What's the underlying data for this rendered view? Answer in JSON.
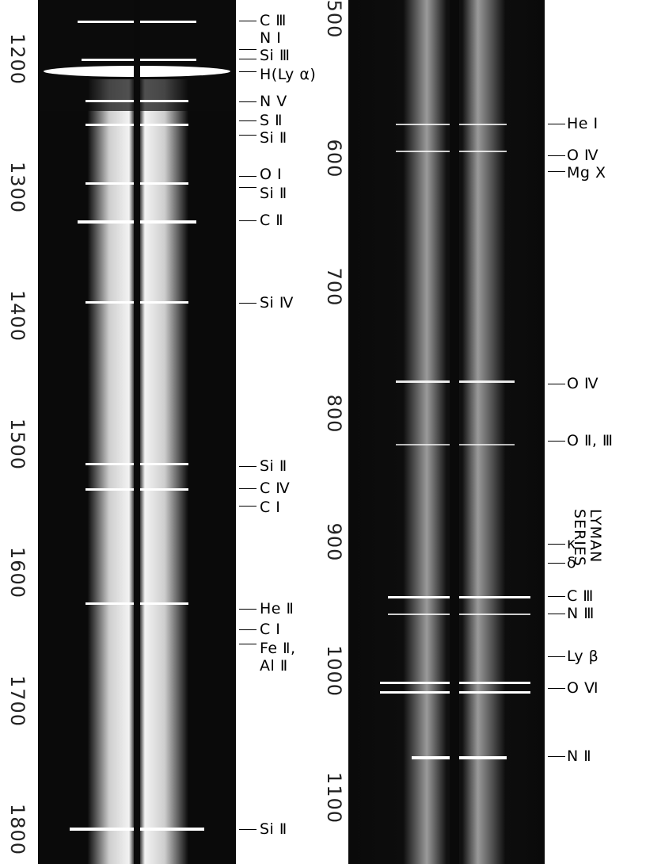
{
  "left_scale": {
    "ticks": [
      "1200",
      "1300",
      "1400",
      "1500",
      "1600",
      "1700",
      "1800"
    ]
  },
  "right_scale": {
    "ticks": [
      "500",
      "600",
      "700",
      "800",
      "900",
      "1000",
      "1100"
    ]
  },
  "left_lines": [
    "C Ⅲ",
    "N I",
    "Si Ⅲ",
    "H(Ly α)",
    "N Ⅴ",
    "S Ⅱ",
    "Si Ⅱ",
    "O I",
    "Si Ⅱ",
    "C Ⅱ",
    "Si Ⅳ",
    "Si Ⅱ",
    "C Ⅳ",
    "C I",
    "He Ⅱ",
    "C I",
    "Fe Ⅱ,",
    "Al Ⅱ",
    "Si Ⅱ"
  ],
  "right_lines": [
    "He I",
    "O Ⅳ",
    "Mg Ⅹ",
    "O Ⅳ",
    "O Ⅱ, Ⅲ",
    "κ",
    "δ",
    "C Ⅲ",
    "N Ⅲ",
    "Ly β",
    "O Ⅵ",
    "N Ⅱ"
  ],
  "lyman": {
    "line1": "LYMAN",
    "line2": "SERIES"
  },
  "colors": {
    "plate_dark": "#0b0b0b",
    "plate_light": "#e8e8e8",
    "paper": "#ffffff"
  }
}
